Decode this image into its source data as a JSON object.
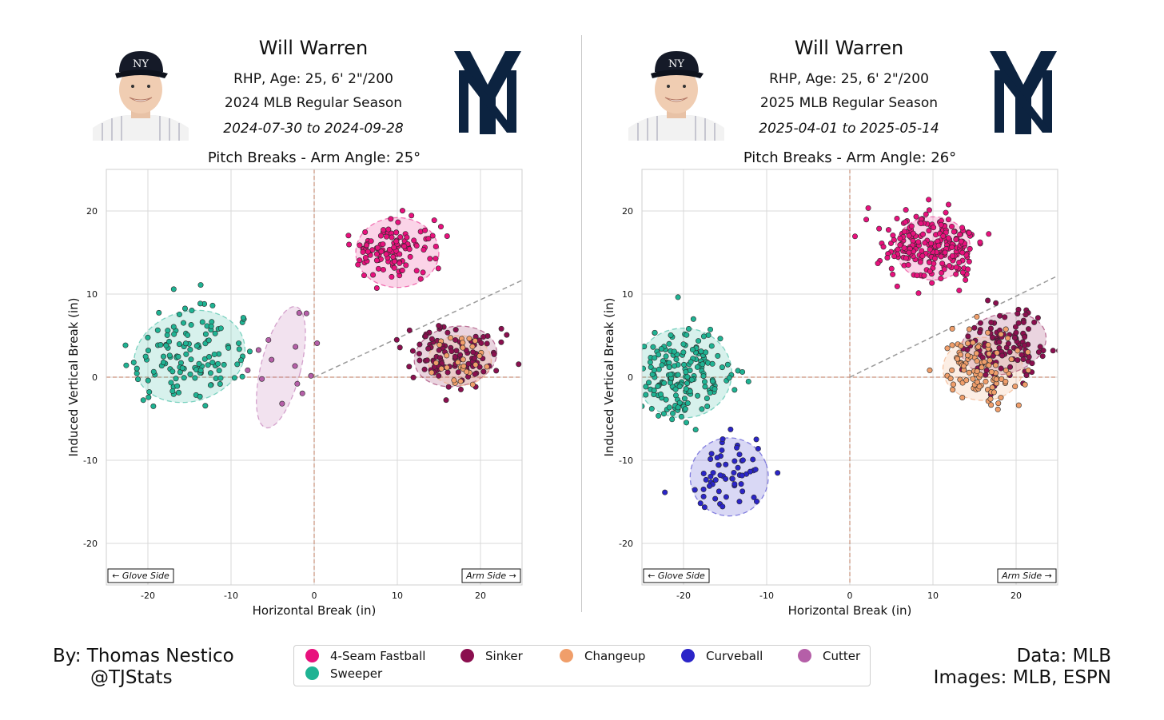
{
  "footer": {
    "author": "By: Thomas Nestico",
    "handle": "@TJStats",
    "data_source": "Data: MLB",
    "image_source": "Images: MLB, ESPN"
  },
  "legend": [
    {
      "name": "4-Seam Fastball",
      "color": "#e8117d"
    },
    {
      "name": "Sinker",
      "color": "#8b0f4f"
    },
    {
      "name": "Changeup",
      "color": "#f09e6a"
    },
    {
      "name": "Curveball",
      "color": "#2b25c8"
    },
    {
      "name": "Cutter",
      "color": "#b55fa8"
    },
    {
      "name": "Sweeper",
      "color": "#1fb393"
    }
  ],
  "panels": [
    {
      "name": "Will Warren",
      "bio": "RHP, Age: 25, 6' 2\"/200",
      "season": "2024 MLB Regular Season",
      "dates": "2024-07-30 to 2024-09-28",
      "title": "Pitch Breaks - Arm Angle: 25°",
      "glove_label": "← Glove Side",
      "arm_label": "Arm Side →"
    },
    {
      "name": "Will Warren",
      "bio": "RHP, Age: 25, 6' 2\"/200",
      "season": "2025 MLB Regular Season",
      "dates": "2025-04-01 to 2025-05-14",
      "title": "Pitch Breaks - Arm Angle: 26°",
      "glove_label": "← Glove Side",
      "arm_label": "Arm Side →"
    }
  ],
  "chart_data": [
    {
      "type": "scatter",
      "title": "Pitch Breaks - Arm Angle: 25°",
      "xlabel": "Horizontal Break (in)",
      "ylabel": "Induced Vertical Break (in)",
      "xlim": [
        -25,
        25
      ],
      "ylim": [
        -25,
        25
      ],
      "xticks": [
        -20,
        -10,
        0,
        10,
        20
      ],
      "yticks": [
        -20,
        -10,
        0,
        10,
        20
      ],
      "grid": true,
      "arm_angle_deg": 25,
      "series": [
        {
          "name": "4-Seam Fastball",
          "color": "#e8117d",
          "count": 120,
          "center": [
            10,
            15
          ],
          "spread": [
            2.4,
            2.0
          ],
          "ellipse": {
            "rx": 5,
            "ry": 4.2,
            "angle": 0
          }
        },
        {
          "name": "Sinker",
          "color": "#8b0f4f",
          "count": 110,
          "center": [
            17,
            2.5
          ],
          "spread": [
            2.6,
            1.8
          ],
          "ellipse": {
            "rx": 5,
            "ry": 3.6,
            "angle": 10
          }
        },
        {
          "name": "Changeup",
          "color": "#f09e6a",
          "count": 30,
          "center": [
            17.5,
            2
          ],
          "spread": [
            1.6,
            1.5
          ],
          "ellipse": {
            "rx": 3.8,
            "ry": 3.0,
            "angle": 0
          }
        },
        {
          "name": "Sweeper",
          "color": "#1fb393",
          "count": 130,
          "center": [
            -15,
            2.5
          ],
          "spread": [
            3.4,
            2.8
          ],
          "ellipse": {
            "rx": 6.8,
            "ry": 5.4,
            "angle": 18
          }
        },
        {
          "name": "Cutter",
          "color": "#b55fa8",
          "count": 14,
          "center": [
            -4,
            1.2
          ],
          "spread": [
            1.8,
            3.6
          ],
          "ellipse": {
            "rx": 2.4,
            "ry": 7.5,
            "angle": -14
          }
        }
      ]
    },
    {
      "type": "scatter",
      "title": "Pitch Breaks - Arm Angle: 26°",
      "xlabel": "Horizontal Break (in)",
      "ylabel": "Induced Vertical Break (in)",
      "xlim": [
        -25,
        25
      ],
      "ylim": [
        -25,
        25
      ],
      "xticks": [
        -20,
        -10,
        0,
        10,
        20
      ],
      "yticks": [
        -20,
        -10,
        0,
        10,
        20
      ],
      "grid": true,
      "arm_angle_deg": 26,
      "series": [
        {
          "name": "4-Seam Fastball",
          "color": "#e8117d",
          "count": 230,
          "center": [
            10,
            15.5
          ],
          "spread": [
            3.0,
            2.1
          ],
          "ellipse": {
            "rx": 4.5,
            "ry": 3.8,
            "angle": 0
          }
        },
        {
          "name": "Sinker",
          "color": "#8b0f4f",
          "count": 120,
          "center": [
            18.5,
            4
          ],
          "spread": [
            2.8,
            2.0
          ],
          "ellipse": {
            "rx": 5.2,
            "ry": 3.6,
            "angle": 15
          }
        },
        {
          "name": "Changeup",
          "color": "#f09e6a",
          "count": 100,
          "center": [
            16,
            1
          ],
          "spread": [
            2.4,
            2.3
          ],
          "ellipse": {
            "rx": 4.8,
            "ry": 3.8,
            "angle": 0
          }
        },
        {
          "name": "Sweeper",
          "color": "#1fb393",
          "count": 190,
          "center": [
            -20,
            0.5
          ],
          "spread": [
            3.0,
            2.6
          ],
          "ellipse": {
            "rx": 5.8,
            "ry": 5.4,
            "angle": 0
          }
        },
        {
          "name": "Curveball",
          "color": "#2b25c8",
          "count": 60,
          "center": [
            -14.5,
            -12
          ],
          "spread": [
            2.3,
            2.1
          ],
          "ellipse": {
            "rx": 4.7,
            "ry": 4.7,
            "angle": 20
          }
        }
      ]
    }
  ]
}
